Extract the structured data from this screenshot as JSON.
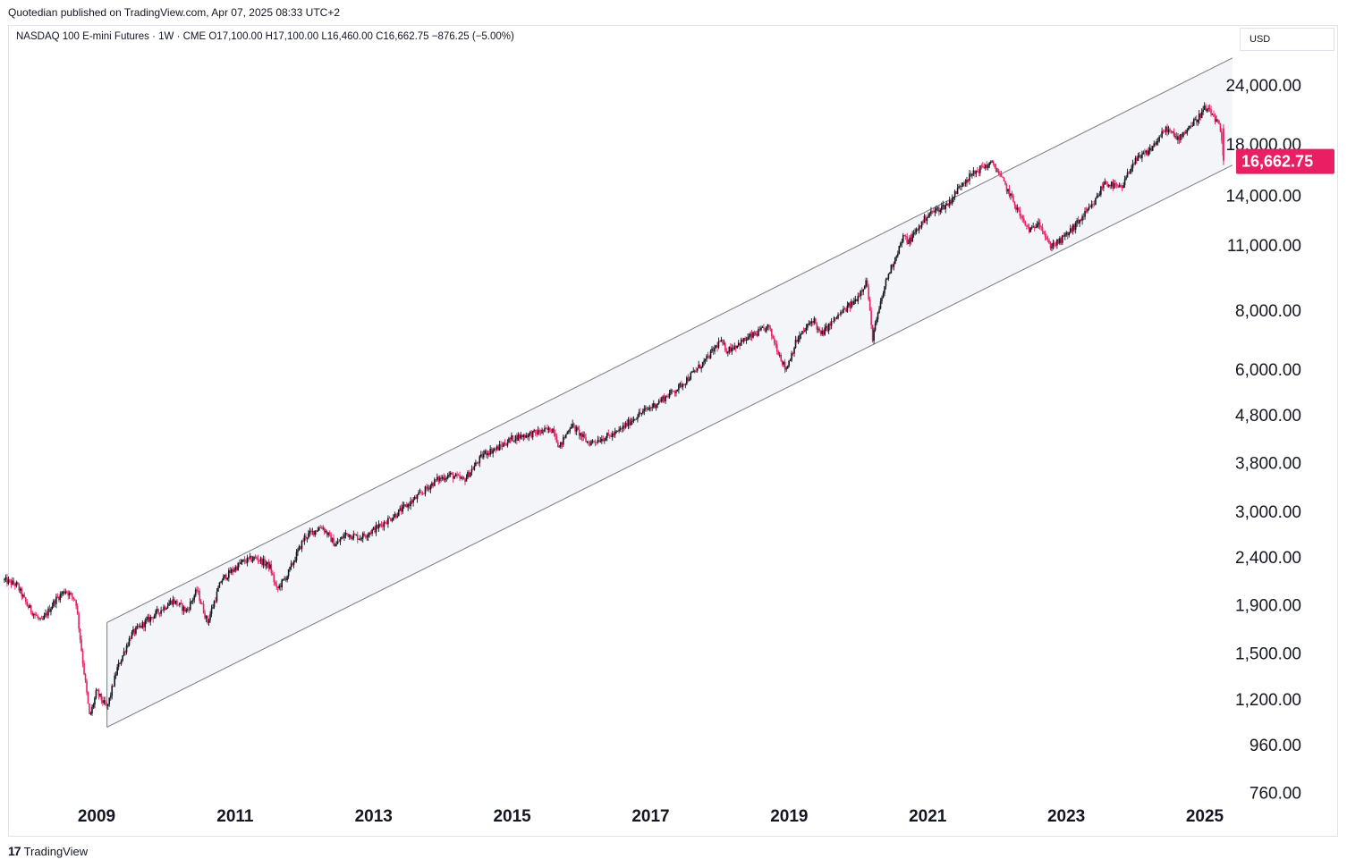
{
  "publisher_line": "Quotedian published on TradingView.com, Apr 07, 2025 08:33 UTC+2",
  "legend": {
    "symbol": "NASDAQ 100 E-mini Futures · 1W · CME",
    "open": "O17,100.00",
    "high": "H17,100.00",
    "low": "L16,460.00",
    "close": "C16,662.75",
    "change": "−876.25 (−5.00%)"
  },
  "currency_label": "USD",
  "last_price_label": "16,662.75",
  "footer_brand": "TradingView",
  "colors": {
    "candle_up": "#131722",
    "candle_down": "#e91e63",
    "price_tag": "#e91e63",
    "channel_line": "#787b86",
    "channel_fill": "#f4f5f8",
    "grid": "none"
  },
  "chart_data": {
    "type": "candlestick",
    "scale": "log",
    "interval": "1W",
    "ylim": [
      760,
      30000
    ],
    "xlim": [
      "2007-09",
      "2025-05"
    ],
    "y_ticks": [
      "24,000.00",
      "18,000.00",
      "14,000.00",
      "11,000.00",
      "8,000.00",
      "6,000.00",
      "4,800.00",
      "3,800.00",
      "3,000.00",
      "2,400.00",
      "1,900.00",
      "1,500.00",
      "1,200.00",
      "960.00",
      "760.00"
    ],
    "y_tick_values": [
      24000,
      18000,
      14000,
      11000,
      8000,
      6000,
      4800,
      3800,
      3000,
      2400,
      1900,
      1500,
      1200,
      960,
      760
    ],
    "x_ticks": [
      "2009",
      "2011",
      "2013",
      "2015",
      "2017",
      "2019",
      "2021",
      "2023",
      "2025"
    ],
    "x_tick_values": [
      2009.0,
      2011.0,
      2013.0,
      2015.0,
      2017.0,
      2019.0,
      2021.0,
      2023.0,
      2025.0
    ],
    "last_price": 16662.75,
    "path_x": [
      2007.67,
      2007.85,
      2008.0,
      2008.2,
      2008.4,
      2008.55,
      2008.7,
      2008.8,
      2008.9,
      2009.0,
      2009.15,
      2009.3,
      2009.5,
      2009.8,
      2010.1,
      2010.3,
      2010.45,
      2010.6,
      2010.8,
      2011.1,
      2011.3,
      2011.5,
      2011.6,
      2011.75,
      2012.0,
      2012.25,
      2012.45,
      2012.6,
      2012.8,
      2013.0,
      2013.3,
      2013.6,
      2013.9,
      2014.1,
      2014.3,
      2014.6,
      2014.8,
      2015.0,
      2015.3,
      2015.6,
      2015.68,
      2015.85,
      2016.1,
      2016.3,
      2016.5,
      2016.8,
      2017.0,
      2017.4,
      2017.8,
      2018.0,
      2018.1,
      2018.4,
      2018.7,
      2018.95,
      2019.1,
      2019.35,
      2019.45,
      2019.7,
      2019.95,
      2020.12,
      2020.2,
      2020.4,
      2020.65,
      2020.72,
      2021.0,
      2021.3,
      2021.5,
      2021.8,
      2021.95,
      2022.2,
      2022.4,
      2022.5,
      2022.6,
      2022.75,
      2022.9,
      2023.1,
      2023.4,
      2023.55,
      2023.8,
      2023.95,
      2024.2,
      2024.45,
      2024.6,
      2024.9,
      2025.0,
      2025.12,
      2025.22,
      2025.27
    ],
    "path_y": [
      2150,
      2100,
      1900,
      1750,
      1950,
      2050,
      1950,
      1450,
      1100,
      1250,
      1150,
      1400,
      1650,
      1800,
      1950,
      1850,
      2050,
      1750,
      2150,
      2350,
      2400,
      2300,
      2050,
      2200,
      2650,
      2800,
      2550,
      2700,
      2650,
      2750,
      2950,
      3200,
      3500,
      3600,
      3500,
      4000,
      4100,
      4300,
      4400,
      4500,
      4100,
      4600,
      4200,
      4300,
      4400,
      4800,
      5000,
      5500,
      6300,
      6900,
      6600,
      7000,
      7400,
      6000,
      6900,
      7700,
      7100,
      7800,
      8400,
      9300,
      7000,
      9300,
      11500,
      11200,
      12800,
      13500,
      15000,
      16200,
      16400,
      14000,
      12200,
      11800,
      12500,
      11000,
      11200,
      12000,
      13500,
      15000,
      14500,
      16400,
      17500,
      19500,
      18500,
      20500,
      21500,
      20800,
      19500,
      16662
    ],
    "channel": {
      "upper": {
        "start": [
          2009.15,
          1750
        ],
        "end": [
          2025.4,
          27500
        ]
      },
      "lower": {
        "start": [
          2009.15,
          1050
        ],
        "end": [
          2025.4,
          16300
        ]
      }
    }
  }
}
